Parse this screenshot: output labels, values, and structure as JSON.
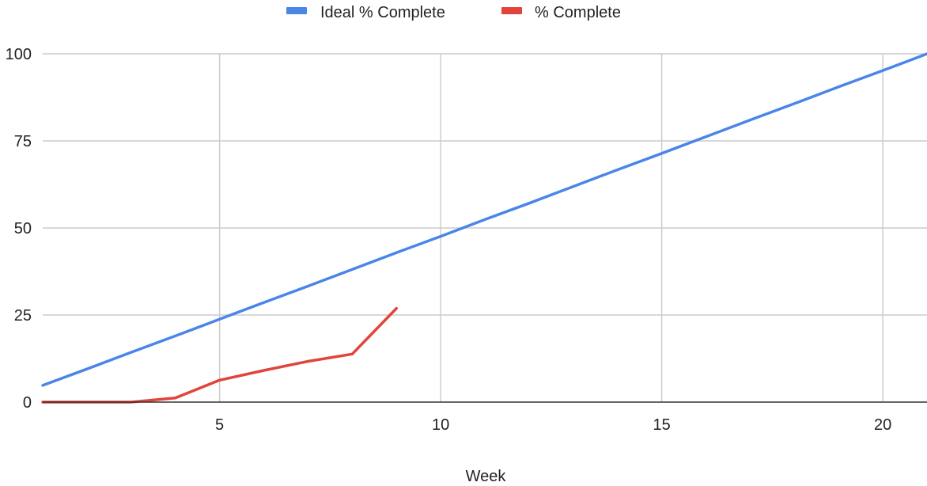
{
  "chart_data": {
    "type": "line",
    "title": "",
    "xlabel": "Week",
    "ylabel": "",
    "xlim": [
      1,
      21
    ],
    "ylim": [
      0,
      100
    ],
    "x_ticks": [
      "5",
      "10",
      "15",
      "20"
    ],
    "y_ticks": [
      "0",
      "25",
      "50",
      "75",
      "100"
    ],
    "grid": true,
    "legend": "top",
    "series": [
      {
        "name": "Ideal % Complete",
        "color": "#4a86e8",
        "x": [
          1,
          2,
          3,
          4,
          5,
          6,
          7,
          8,
          9,
          10,
          11,
          12,
          13,
          14,
          15,
          16,
          17,
          18,
          19,
          20,
          21
        ],
        "y": [
          4.8,
          9.5,
          14.3,
          19.0,
          23.8,
          28.6,
          33.3,
          38.1,
          42.9,
          47.6,
          52.4,
          57.1,
          61.9,
          66.7,
          71.4,
          76.2,
          81.0,
          85.7,
          90.5,
          95.2,
          100
        ]
      },
      {
        "name": "% Complete",
        "color": "#e1443a",
        "x": [
          1,
          2,
          3,
          4,
          5,
          6,
          7,
          8,
          9
        ],
        "y": [
          0,
          0,
          0,
          1.2,
          6.3,
          9.1,
          11.7,
          13.8,
          26.9
        ]
      }
    ]
  }
}
